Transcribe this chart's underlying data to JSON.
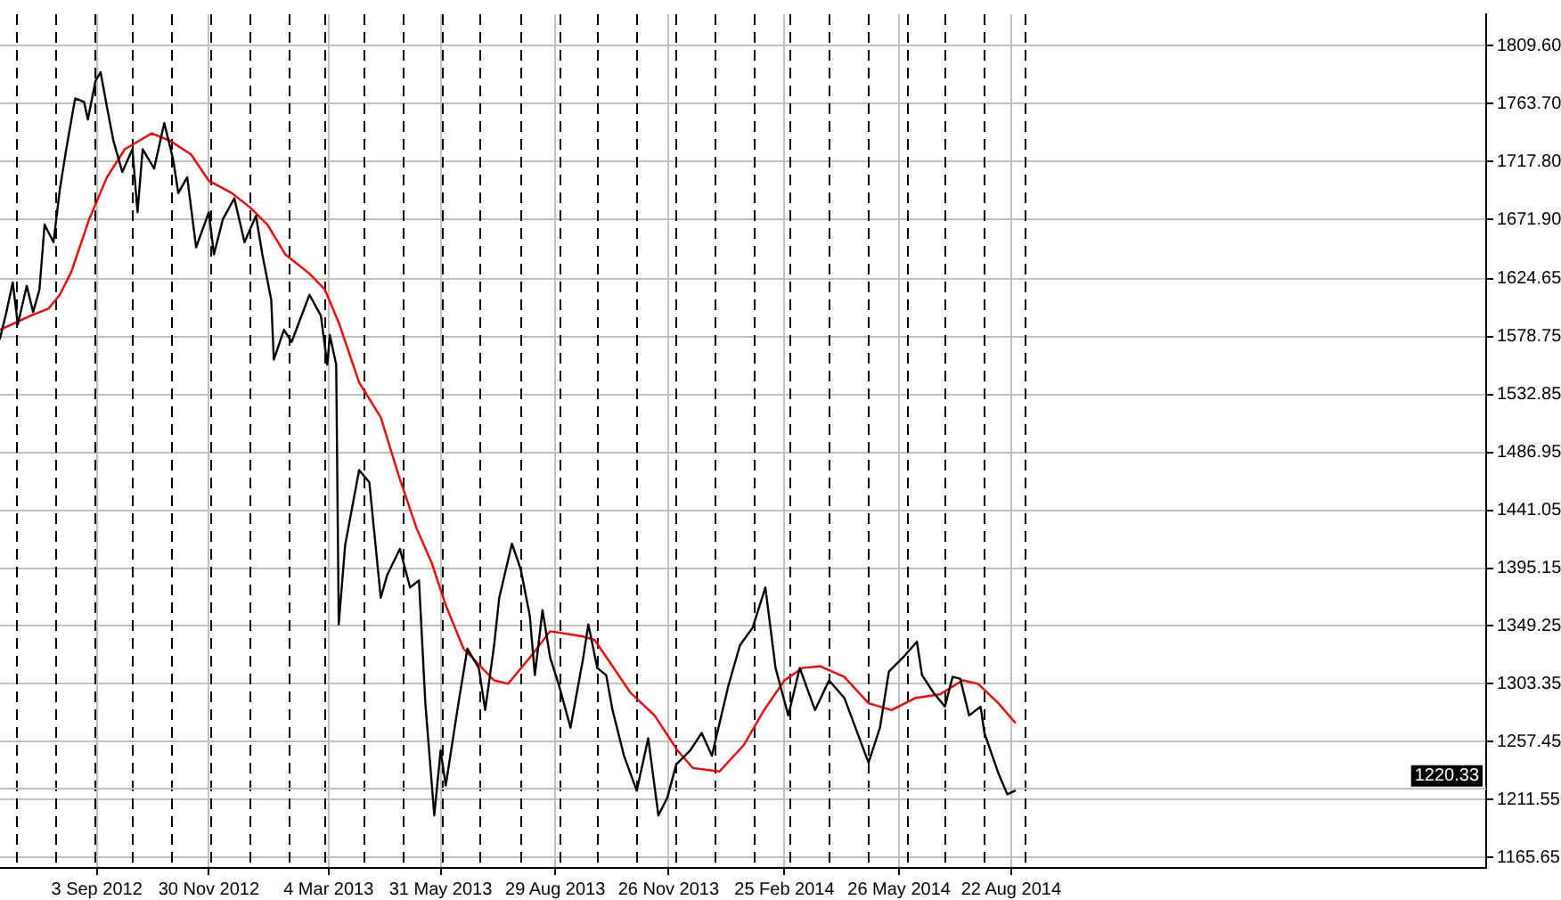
{
  "chart_data": {
    "type": "line",
    "xlim": [
      "2012-06-19",
      "2015-08-30"
    ],
    "xticks": [
      {
        "value": "2012-09-03",
        "label": "3 Sep 2012"
      },
      {
        "value": "2012-11-30",
        "label": "30 Nov 2012"
      },
      {
        "value": "2013-03-04",
        "label": "4 Mar 2013"
      },
      {
        "value": "2013-05-31",
        "label": "31 May 2013"
      },
      {
        "value": "2013-08-29",
        "label": "29 Aug 2013"
      },
      {
        "value": "2013-11-26",
        "label": "26 Nov 2013"
      },
      {
        "value": "2014-02-25",
        "label": "25 Feb 2014"
      },
      {
        "value": "2014-05-26",
        "label": "26 May 2014"
      },
      {
        "value": "2014-08-22",
        "label": "22 Aug 2014"
      }
    ],
    "ylim": [
      1157.3,
      1834.6
    ],
    "yticks": [
      {
        "value": 1165.65,
        "label": "1165.65"
      },
      {
        "value": 1211.55,
        "label": "1211.55"
      },
      {
        "value": 1257.45,
        "label": "1257.45"
      },
      {
        "value": 1303.35,
        "label": "1303.35"
      },
      {
        "value": 1349.25,
        "label": "1349.25"
      },
      {
        "value": 1395.15,
        "label": "1395.15"
      },
      {
        "value": 1441.05,
        "label": "1441.05"
      },
      {
        "value": 1486.95,
        "label": "1486.95"
      },
      {
        "value": 1532.85,
        "label": "1532.85"
      },
      {
        "value": 1578.75,
        "label": "1578.75"
      },
      {
        "value": 1624.65,
        "label": "1624.65"
      },
      {
        "value": 1671.9,
        "label": "1671.90"
      },
      {
        "value": 1717.8,
        "label": "1717.80"
      },
      {
        "value": 1763.7,
        "label": "1763.70"
      },
      {
        "value": 1809.6,
        "label": "1809.60"
      }
    ],
    "grid": true,
    "legend": false,
    "series": [
      {
        "color": "#000000",
        "x": [
          "2012-06-19",
          "2012-06-24",
          "2012-06-29",
          "2012-07-03",
          "2012-07-10",
          "2012-07-15",
          "2012-07-20",
          "2012-07-24",
          "2012-07-31",
          "2012-08-05",
          "2012-08-10",
          "2012-08-17",
          "2012-08-24",
          "2012-08-27",
          "2012-09-02",
          "2012-09-06",
          "2012-09-11",
          "2012-09-16",
          "2012-09-23",
          "2012-10-01",
          "2012-10-05",
          "2012-10-09",
          "2012-10-18",
          "2012-10-26",
          "2012-11-02",
          "2012-11-06",
          "2012-11-13",
          "2012-11-20",
          "2012-11-30",
          "2012-12-04",
          "2012-12-11",
          "2012-12-20",
          "2012-12-28",
          "2013-01-06",
          "2013-01-11",
          "2013-01-18",
          "2013-01-20",
          "2013-01-28",
          "2013-02-03",
          "2013-02-17",
          "2013-02-26",
          "2013-03-03",
          "2013-03-05",
          "2013-03-10",
          "2013-03-12",
          "2013-03-17",
          "2013-03-28",
          "2013-04-05",
          "2013-04-14",
          "2013-04-19",
          "2013-04-29",
          "2013-05-07",
          "2013-05-14",
          "2013-05-19",
          "2013-05-26",
          "2013-05-31",
          "2013-06-04",
          "2013-06-14",
          "2013-06-21",
          "2013-06-30",
          "2013-07-05",
          "2013-07-12",
          "2013-07-16",
          "2013-07-26",
          "2013-08-02",
          "2013-08-09",
          "2013-08-13",
          "2013-08-19",
          "2013-08-25",
          "2013-09-01",
          "2013-09-10",
          "2013-09-20",
          "2013-09-24",
          "2013-10-01",
          "2013-10-08",
          "2013-10-13",
          "2013-10-22",
          "2013-11-01",
          "2013-11-10",
          "2013-11-18",
          "2013-11-25",
          "2013-12-02",
          "2013-12-13",
          "2013-12-22",
          "2013-12-30",
          "2014-01-12",
          "2014-01-21",
          "2014-01-31",
          "2014-02-10",
          "2014-02-18",
          "2014-02-28",
          "2014-03-09",
          "2014-03-21",
          "2014-04-01",
          "2014-04-13",
          "2014-05-02",
          "2014-05-11",
          "2014-05-18",
          "2014-05-29",
          "2014-06-09",
          "2014-06-13",
          "2014-06-22",
          "2014-07-01",
          "2014-07-07",
          "2014-07-13",
          "2014-07-20",
          "2014-07-29",
          "2014-08-01",
          "2014-08-12",
          "2014-08-19",
          "2014-08-25"
        ],
        "values": [
          1577.3,
          1598.2,
          1621.8,
          1588.5,
          1619.1,
          1598.2,
          1616.3,
          1667.7,
          1653.8,
          1695.6,
          1727.5,
          1767.9,
          1765.1,
          1751.2,
          1781.8,
          1788.7,
          1760.9,
          1734.5,
          1709.5,
          1727.5,
          1677.5,
          1727.5,
          1712.2,
          1748.4,
          1719.2,
          1692.8,
          1705.3,
          1649.7,
          1677.5,
          1644.1,
          1671.9,
          1688.6,
          1653.8,
          1674.7,
          1644.1,
          1607.9,
          1560.6,
          1584.3,
          1574.6,
          1612.1,
          1595.4,
          1556.5,
          1580.1,
          1556.5,
          1350.6,
          1413.2,
          1473.0,
          1463.3,
          1371.5,
          1389.6,
          1410.4,
          1379.8,
          1385.4,
          1288.0,
          1199.0,
          1250.5,
          1222.7,
          1288.0,
          1331.2,
          1315.9,
          1282.5,
          1333.9,
          1371.5,
          1414.6,
          1393.8,
          1357.6,
          1310.3,
          1361.8,
          1324.2,
          1302.0,
          1268.6,
          1324.2,
          1350.6,
          1315.9,
          1310.3,
          1282.5,
          1246.3,
          1218.5,
          1260.2,
          1199.0,
          1212.9,
          1239.4,
          1250.5,
          1264.4,
          1246.3,
          1302.0,
          1333.9,
          1347.9,
          1379.8,
          1315.9,
          1278.3,
          1315.9,
          1282.5,
          1306.1,
          1292.2,
          1240.8,
          1268.6,
          1313.1,
          1324.2,
          1336.7,
          1310.3,
          1296.4,
          1285.3,
          1308.9,
          1307.5,
          1278.3,
          1285.3,
          1264.4,
          1232.4,
          1215.7,
          1218.5
        ]
      },
      {
        "color": "#ff0000",
        "x": [
          "2012-06-19",
          "2012-07-13",
          "2012-07-27",
          "2012-08-05",
          "2012-08-14",
          "2012-08-28",
          "2012-09-11",
          "2012-09-25",
          "2012-10-16",
          "2012-10-30",
          "2012-11-16",
          "2012-11-30",
          "2012-12-18",
          "2013-01-01",
          "2013-01-15",
          "2013-01-29",
          "2013-02-17",
          "2013-03-01",
          "2013-03-12",
          "2013-03-28",
          "2013-04-14",
          "2013-04-28",
          "2013-05-12",
          "2013-05-24",
          "2013-06-04",
          "2013-06-18",
          "2013-07-12",
          "2013-07-23",
          "2013-08-09",
          "2013-08-25",
          "2013-09-20",
          "2013-09-29",
          "2013-10-27",
          "2013-11-15",
          "2013-12-03",
          "2013-12-15",
          "2014-01-05",
          "2014-01-24",
          "2014-02-09",
          "2014-02-25",
          "2014-03-11",
          "2014-03-25",
          "2014-04-13",
          "2014-05-02",
          "2014-05-20",
          "2014-06-08",
          "2014-06-27",
          "2014-07-15",
          "2014-07-27",
          "2014-08-12",
          "2014-08-25"
        ],
        "values": [
          1584.3,
          1595.4,
          1601.0,
          1612.1,
          1630.2,
          1671.9,
          1705.3,
          1727.5,
          1740.1,
          1734.5,
          1723.4,
          1702.5,
          1692.8,
          1681.6,
          1667.7,
          1644.1,
          1628.8,
          1616.3,
          1590.0,
          1542.6,
          1514.7,
          1468.9,
          1427.1,
          1399.3,
          1365.9,
          1331.2,
          1306.1,
          1303.4,
          1324.2,
          1345.1,
          1340.9,
          1338.1,
          1296.4,
          1278.3,
          1250.5,
          1236.6,
          1233.8,
          1254.7,
          1282.5,
          1306.1,
          1315.9,
          1317.3,
          1308.9,
          1288.0,
          1282.5,
          1292.2,
          1295.0,
          1306.1,
          1303.4,
          1288.0,
          1272.7
        ]
      }
    ],
    "ref_lines": [
      {
        "axis": "y",
        "value": 1220.33,
        "label": "1220.33",
        "color": "#c0c0c0"
      },
      {
        "axis": "x",
        "value": "2012-07-01",
        "color": "#000000",
        "line_style": "dashed"
      },
      {
        "axis": "x",
        "value": "2012-08-01",
        "color": "#000000",
        "line_style": "dashed"
      },
      {
        "axis": "x",
        "value": "2012-09-01",
        "color": "#000000",
        "line_style": "dashed"
      },
      {
        "axis": "x",
        "value": "2012-10-01",
        "color": "#000000",
        "line_style": "dashed"
      },
      {
        "axis": "x",
        "value": "2012-11-01",
        "color": "#000000",
        "line_style": "dashed"
      },
      {
        "axis": "x",
        "value": "2012-12-01",
        "color": "#000000",
        "line_style": "dashed"
      },
      {
        "axis": "x",
        "value": "2013-01-01",
        "color": "#000000",
        "line_style": "dashed"
      },
      {
        "axis": "x",
        "value": "2013-02-01",
        "color": "#000000",
        "line_style": "dashed"
      },
      {
        "axis": "x",
        "value": "2013-03-01",
        "color": "#000000",
        "line_style": "dashed"
      },
      {
        "axis": "x",
        "value": "2013-04-01",
        "color": "#000000",
        "line_style": "dashed"
      },
      {
        "axis": "x",
        "value": "2013-05-01",
        "color": "#000000",
        "line_style": "dashed"
      },
      {
        "axis": "x",
        "value": "2013-06-01",
        "color": "#000000",
        "line_style": "dashed"
      },
      {
        "axis": "x",
        "value": "2013-07-01",
        "color": "#000000",
        "line_style": "dashed"
      },
      {
        "axis": "x",
        "value": "2013-08-01",
        "color": "#000000",
        "line_style": "dashed"
      },
      {
        "axis": "x",
        "value": "2013-09-01",
        "color": "#000000",
        "line_style": "dashed"
      },
      {
        "axis": "x",
        "value": "2013-10-01",
        "color": "#000000",
        "line_style": "dashed"
      },
      {
        "axis": "x",
        "value": "2013-11-01",
        "color": "#000000",
        "line_style": "dashed"
      },
      {
        "axis": "x",
        "value": "2013-12-01",
        "color": "#000000",
        "line_style": "dashed"
      },
      {
        "axis": "x",
        "value": "2014-01-01",
        "color": "#000000",
        "line_style": "dashed"
      },
      {
        "axis": "x",
        "value": "2014-02-01",
        "color": "#000000",
        "line_style": "dashed"
      },
      {
        "axis": "x",
        "value": "2014-03-01",
        "color": "#000000",
        "line_style": "dashed"
      },
      {
        "axis": "x",
        "value": "2014-04-01",
        "color": "#000000",
        "line_style": "dashed"
      },
      {
        "axis": "x",
        "value": "2014-05-01",
        "color": "#000000",
        "line_style": "dashed"
      },
      {
        "axis": "x",
        "value": "2014-06-01",
        "color": "#000000",
        "line_style": "dashed"
      },
      {
        "axis": "x",
        "value": "2014-07-01",
        "color": "#000000",
        "line_style": "dashed"
      },
      {
        "axis": "x",
        "value": "2014-08-01",
        "color": "#000000",
        "line_style": "dashed"
      },
      {
        "axis": "x",
        "value": "2014-09-01",
        "color": "#000000",
        "line_style": "dashed"
      }
    ]
  }
}
